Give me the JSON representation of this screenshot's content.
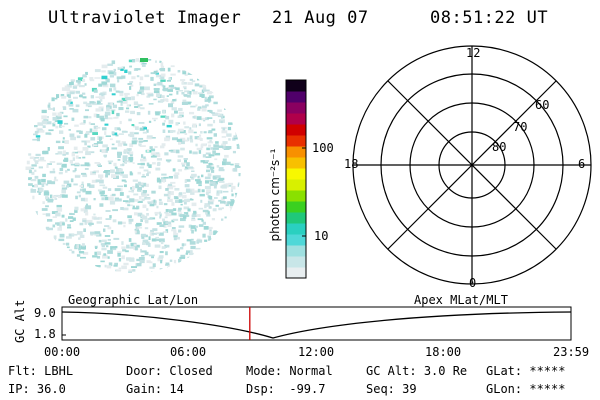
{
  "header": {
    "instrument": "Ultraviolet Imager",
    "date": "21 Aug 07",
    "time": "08:51:22 UT"
  },
  "colorbar": {
    "unit_label": "photon cm⁻²s⁻¹",
    "ticks": [
      "100",
      "10"
    ],
    "colors": [
      "#e8eef0",
      "#c8e6e8",
      "#9fe0e0",
      "#4fd8d8",
      "#2ad0c0",
      "#20c87a",
      "#3ad020",
      "#8ae000",
      "#d8f000",
      "#f8f800",
      "#f8c000",
      "#f89000",
      "#e83000",
      "#d00000",
      "#b0004a",
      "#8a0060",
      "#50006a",
      "#10001a"
    ]
  },
  "polar": {
    "mlt_labels": {
      "top": "12",
      "left": "18",
      "right": "6",
      "bottom": "0"
    },
    "lat_labels": [
      "80",
      "70",
      "60"
    ]
  },
  "timeline": {
    "left_title": "Geographic Lat/Lon",
    "right_title": "Apex MLat/MLT",
    "ylabel": "GC Alt",
    "ytick_top": "9.0",
    "ytick_bottom": "1.8",
    "xticks": [
      "00:00",
      "06:00",
      "12:00",
      "18:00",
      "23:59"
    ],
    "current_hour": 8.856,
    "marker_color": "#cc0000"
  },
  "info": {
    "row1": [
      {
        "label": "Flt:",
        "value": "LBHL"
      },
      {
        "label": "Door:",
        "value": "Closed"
      },
      {
        "label": "Mode:",
        "value": "Normal"
      },
      {
        "label": "GC Alt:",
        "value": "3.0 Re"
      },
      {
        "label": "GLat:",
        "value": "*****"
      }
    ],
    "row2": [
      {
        "label": "IP:",
        "value": "36.0"
      },
      {
        "label": "Gain:",
        "value": "14"
      },
      {
        "label": "Dsp:",
        "value": "-99.7"
      },
      {
        "label": "Seq:",
        "value": "39"
      },
      {
        "label": "GLon:",
        "value": "*****"
      }
    ]
  }
}
